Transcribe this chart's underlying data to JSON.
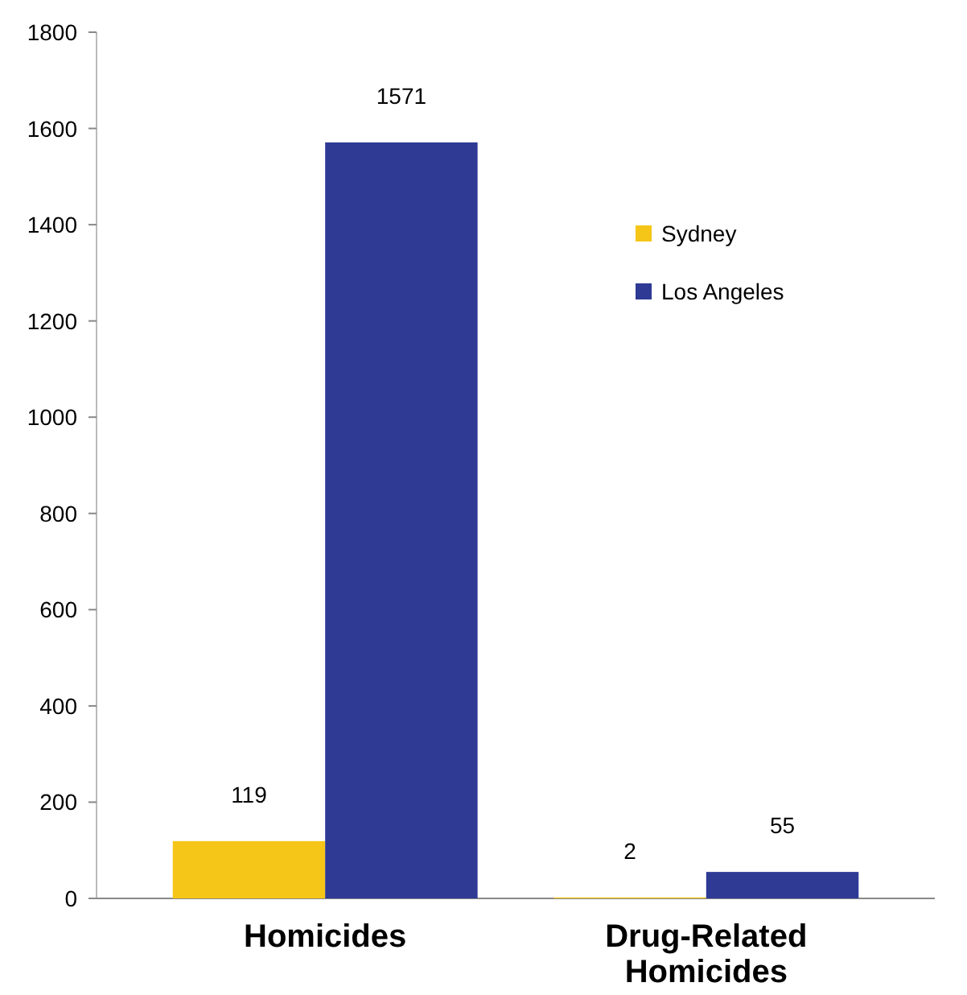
{
  "chart_data": {
    "type": "bar",
    "categories": [
      "Homicides",
      "Drug-Related Homicides"
    ],
    "series": [
      {
        "name": "Sydney",
        "color": "#f5c518",
        "values": [
          119,
          2
        ]
      },
      {
        "name": "Los Angeles",
        "color": "#2e3a94",
        "values": [
          1571,
          55
        ]
      }
    ],
    "ylim": [
      0,
      1800
    ],
    "yticks": [
      0,
      200,
      400,
      600,
      800,
      1000,
      1200,
      1400,
      1600,
      1800
    ],
    "data_labels": true,
    "legend": "top right"
  }
}
